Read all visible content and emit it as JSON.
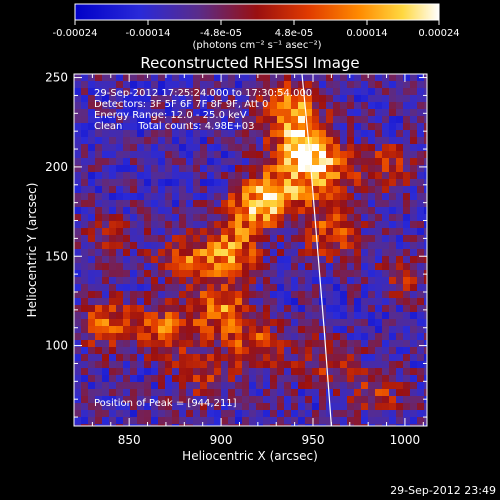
{
  "chart_data": {
    "type": "heatmap",
    "title": "Reconstructed RHESSI Image",
    "xlabel": "Heliocentric X (arcsec)",
    "ylabel": "Heliocentric Y (arcsec)",
    "xlim": [
      820,
      1012
    ],
    "ylim": [
      55,
      252
    ],
    "xticks": [
      850,
      900,
      950,
      1000
    ],
    "yticks": [
      100,
      150,
      200,
      250
    ],
    "grid": false,
    "colorbar": {
      "position": "top",
      "ticks": [
        "-0.00024",
        "-0.00014",
        "-4.8e-05",
        "4.8e-05",
        "0.00014",
        "0.00024"
      ],
      "range": [
        -0.00024,
        0.00024
      ],
      "unit": "(photons cm⁻² s⁻¹ asec⁻²)"
    },
    "annotations": [
      "29-Sep-2012 17:25:24.000 to 17:30:54.000",
      "Detectors: 3F 5F 6F 7F 8F 9F, Att 0",
      "Energy Range: 12.0 - 25.0 keV",
      "Clean     Total counts: 4.98E+03"
    ],
    "peak_label": "Position of Peak = [944,211]",
    "peak": [
      944,
      211
    ],
    "limb_curve": [
      [
        944,
        252
      ],
      [
        948,
        210
      ],
      [
        952,
        160
      ],
      [
        956,
        110
      ],
      [
        960,
        55
      ]
    ],
    "sources": [
      {
        "x": 944,
        "y": 211,
        "amp": 1.0
      },
      {
        "x": 938,
        "y": 233,
        "amp": 0.8
      },
      {
        "x": 930,
        "y": 185,
        "amp": 0.85
      },
      {
        "x": 957,
        "y": 196,
        "amp": 0.7
      },
      {
        "x": 915,
        "y": 175,
        "amp": 0.6
      },
      {
        "x": 960,
        "y": 163,
        "amp": 0.6
      },
      {
        "x": 905,
        "y": 152,
        "amp": 0.75
      },
      {
        "x": 880,
        "y": 148,
        "amp": 0.55
      },
      {
        "x": 900,
        "y": 120,
        "amp": 0.7
      },
      {
        "x": 870,
        "y": 108,
        "amp": 0.65
      },
      {
        "x": 838,
        "y": 112,
        "amp": 0.6
      },
      {
        "x": 918,
        "y": 100,
        "amp": 0.55
      },
      {
        "x": 955,
        "y": 92,
        "amp": 0.4
      },
      {
        "x": 890,
        "y": 82,
        "amp": 0.4
      },
      {
        "x": 990,
        "y": 200,
        "amp": 0.45
      },
      {
        "x": 1000,
        "y": 140,
        "amp": 0.35
      },
      {
        "x": 985,
        "y": 75,
        "amp": 0.4
      },
      {
        "x": 840,
        "y": 160,
        "amp": 0.3
      }
    ]
  },
  "footer_timestamp": "29-Sep-2012 23:49"
}
